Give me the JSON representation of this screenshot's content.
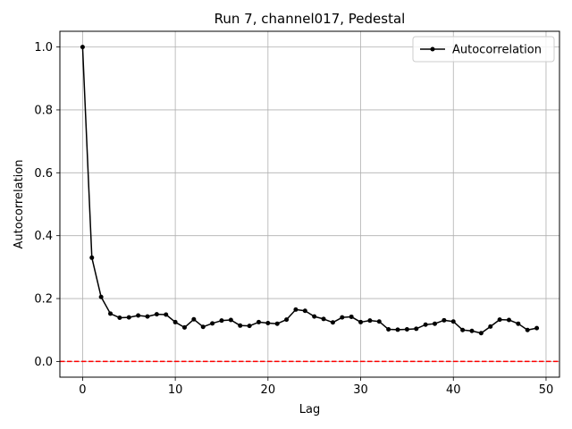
{
  "chart_data": {
    "type": "line",
    "title": "Run 7, channel017, Pedestal",
    "xlabel": "Lag",
    "ylabel": "Autocorrelation",
    "xlim": [
      -2.45,
      51.45
    ],
    "ylim": [
      -0.05,
      1.05
    ],
    "xticks": [
      0,
      10,
      20,
      30,
      40,
      50
    ],
    "yticks": [
      0.0,
      0.2,
      0.4,
      0.6,
      0.8,
      1.0
    ],
    "ytick_labels": [
      "0.0",
      "0.2",
      "0.4",
      "0.6",
      "0.8",
      "1.0"
    ],
    "grid": true,
    "legend_position": "top-right",
    "reference_line": {
      "y": 0.0,
      "style": "dashed",
      "color": "#ff0000"
    },
    "series": [
      {
        "name": "Autocorrelation",
        "color": "#000000",
        "marker": "dot",
        "x": [
          0,
          1,
          2,
          3,
          4,
          5,
          6,
          7,
          8,
          9,
          10,
          11,
          12,
          13,
          14,
          15,
          16,
          17,
          18,
          19,
          20,
          21,
          22,
          23,
          24,
          25,
          26,
          27,
          28,
          29,
          30,
          31,
          32,
          33,
          34,
          35,
          36,
          37,
          38,
          39,
          40,
          41,
          42,
          43,
          44,
          45,
          46,
          47,
          48,
          49
        ],
        "y": [
          1.0,
          0.33,
          0.205,
          0.152,
          0.139,
          0.14,
          0.146,
          0.143,
          0.15,
          0.149,
          0.125,
          0.108,
          0.134,
          0.11,
          0.121,
          0.13,
          0.132,
          0.114,
          0.113,
          0.125,
          0.122,
          0.12,
          0.133,
          0.165,
          0.161,
          0.143,
          0.135,
          0.124,
          0.14,
          0.142,
          0.125,
          0.13,
          0.127,
          0.102,
          0.101,
          0.102,
          0.104,
          0.117,
          0.12,
          0.131,
          0.127,
          0.1,
          0.097,
          0.09,
          0.111,
          0.133,
          0.132,
          0.12,
          0.1,
          0.106
        ]
      }
    ]
  }
}
